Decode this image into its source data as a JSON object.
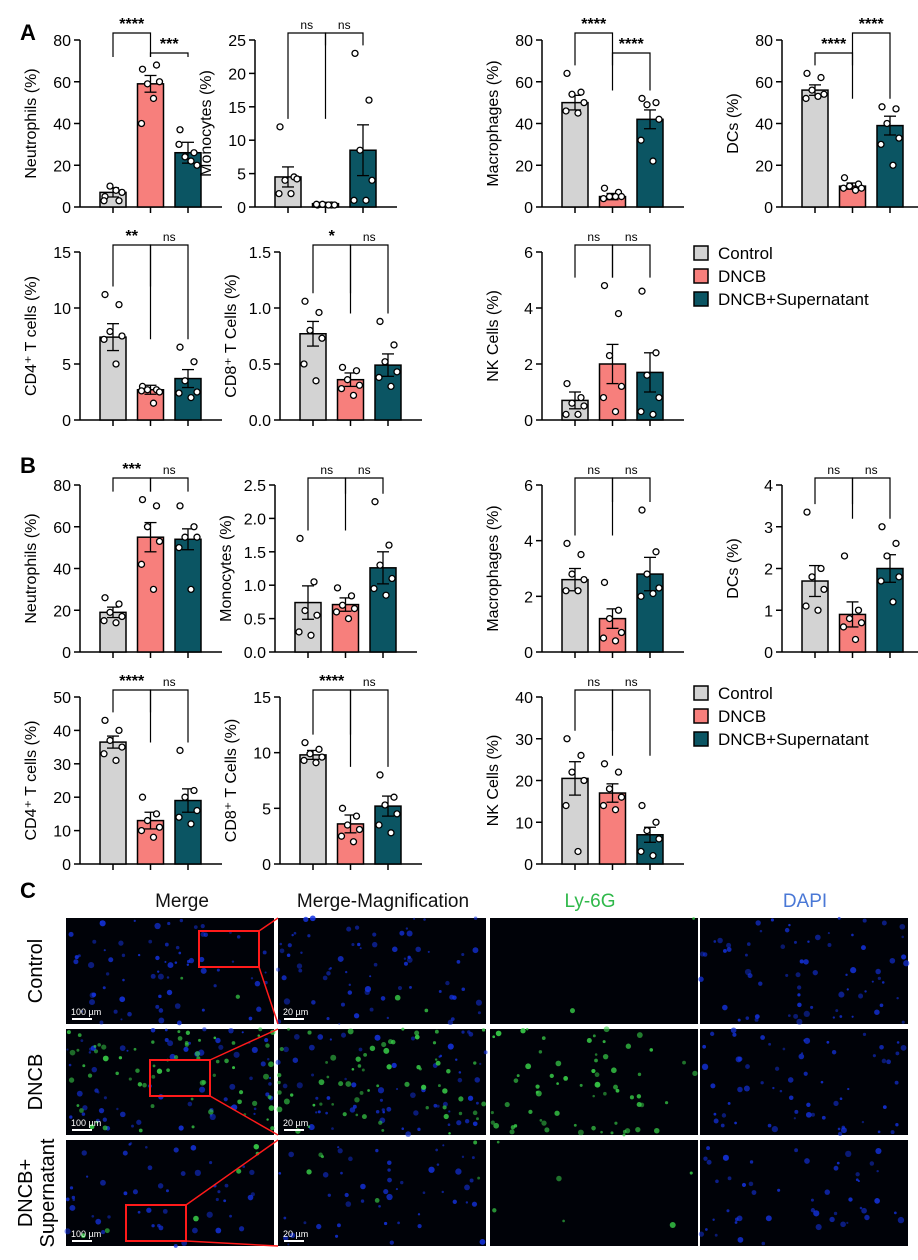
{
  "colors": {
    "control": "#d3d3d3",
    "dncb": "#f77f7c",
    "supernatant": "#0b5563",
    "edge": "#000000",
    "dapi": "#1434e6",
    "ly6g": "#39d24a",
    "roi": "#ff1a1a",
    "ly6g_title": "#2fb84a",
    "dapi_title": "#4a78d6"
  },
  "panel_labels": {
    "a": "A",
    "b": "B",
    "c": "C"
  },
  "legend": {
    "items": [
      "Control",
      "DNCB",
      "DNCB+Supernatant"
    ]
  },
  "chart_data": [
    {
      "type": "bar",
      "panel": "A",
      "ylabel": "Neutrophils (%)",
      "ylim": [
        0,
        80
      ],
      "yticks": [
        0,
        20,
        40,
        60,
        80
      ],
      "categories": [
        "Control",
        "DNCB",
        "DNCB+Supernatant"
      ],
      "values": [
        7,
        59,
        26
      ],
      "errors": [
        2.2,
        4,
        5
      ],
      "points": [
        [
          5,
          3,
          10,
          7,
          3,
          8
        ],
        [
          66,
          68,
          59,
          60,
          40,
          52
        ],
        [
          37,
          26,
          24,
          20,
          30,
          22
        ]
      ],
      "brackets": [
        {
          "from": 0,
          "to": 1,
          "label": "****",
          "level": 0
        },
        {
          "from": 1,
          "to": 2,
          "label": "***",
          "level": 1
        }
      ]
    },
    {
      "type": "bar",
      "panel": "A",
      "ylabel": "Monocytes (%)",
      "ylim": [
        0,
        25
      ],
      "yticks": [
        0,
        5,
        10,
        15,
        20,
        25
      ],
      "categories": [
        "Control",
        "DNCB",
        "DNCB+Supernatant"
      ],
      "values": [
        4.5,
        0.5,
        8.5
      ],
      "errors": [
        1.5,
        0.2,
        3.8
      ],
      "points": [
        [
          12,
          4.5,
          4,
          4.2,
          2,
          2
        ],
        [
          0.3,
          0.3,
          0.4,
          0.3,
          0.4,
          0.3
        ],
        [
          23,
          16,
          8.5,
          4,
          1,
          1
        ]
      ],
      "brackets": [
        {
          "from": 0,
          "to": 1,
          "label": "ns",
          "level": 0
        },
        {
          "from": 1,
          "to": 2,
          "label": "ns",
          "level": 0
        }
      ]
    },
    {
      "type": "bar",
      "panel": "A",
      "ylabel": "Macrophages (%)",
      "ylim": [
        0,
        80
      ],
      "yticks": [
        0,
        20,
        40,
        60,
        80
      ],
      "categories": [
        "Control",
        "DNCB",
        "DNCB+Supernatant"
      ],
      "values": [
        50,
        5,
        42
      ],
      "errors": [
        3.5,
        1.5,
        4.5
      ],
      "points": [
        [
          64,
          55,
          54,
          50,
          46,
          45
        ],
        [
          9,
          7,
          5,
          5,
          4,
          5
        ],
        [
          52,
          50,
          49,
          42,
          32,
          22
        ]
      ],
      "brackets": [
        {
          "from": 0,
          "to": 1,
          "label": "****",
          "level": 0
        },
        {
          "from": 1,
          "to": 2,
          "label": "****",
          "level": 1
        }
      ]
    },
    {
      "type": "bar",
      "panel": "A",
      "ylabel": "DCs (%)",
      "ylim": [
        0,
        80
      ],
      "yticks": [
        0,
        20,
        40,
        60,
        80
      ],
      "categories": [
        "Control",
        "DNCB",
        "DNCB+Supernatant"
      ],
      "values": [
        56,
        10,
        39
      ],
      "errors": [
        2.5,
        1.5,
        4.5
      ],
      "points": [
        [
          64,
          62,
          56,
          54,
          52,
          53
        ],
        [
          14,
          11,
          10,
          9,
          9,
          8
        ],
        [
          48,
          47,
          40,
          33,
          30,
          20
        ]
      ],
      "brackets": [
        {
          "from": 0,
          "to": 1,
          "label": "****",
          "level": 1
        },
        {
          "from": 1,
          "to": 2,
          "label": "****",
          "level": 0
        }
      ]
    },
    {
      "type": "bar",
      "panel": "A",
      "ylabel": "CD4⁺ T cells (%)",
      "ylim": [
        0,
        15
      ],
      "yticks": [
        0,
        5,
        10,
        15
      ],
      "categories": [
        "Control",
        "DNCB",
        "DNCB+Supernatant"
      ],
      "values": [
        7.4,
        2.7,
        3.7
      ],
      "errors": [
        1.2,
        0.4,
        0.8
      ],
      "points": [
        [
          11.2,
          10.3,
          7.9,
          7.5,
          7.2,
          5
        ],
        [
          3,
          2.7,
          2.7,
          2.5,
          2.6,
          1.5
        ],
        [
          6.5,
          5.2,
          3.5,
          2.5,
          2.4,
          2
        ]
      ],
      "brackets": [
        {
          "from": 0,
          "to": 1,
          "label": "**",
          "level": 0
        },
        {
          "from": 1,
          "to": 2,
          "label": "ns",
          "level": 0
        }
      ]
    },
    {
      "type": "bar",
      "panel": "A",
      "ylabel": "CD8⁺ T Cells (%)",
      "ylim": [
        0,
        1.5
      ],
      "yticks": [
        "0.0",
        "0.5",
        "1.0",
        "1.5"
      ],
      "categories": [
        "Control",
        "DNCB",
        "DNCB+Supernatant"
      ],
      "values": [
        0.77,
        0.36,
        0.49
      ],
      "errors": [
        0.11,
        0.06,
        0.1
      ],
      "points": [
        [
          1.06,
          0.96,
          0.8,
          0.73,
          0.5,
          0.35
        ],
        [
          0.47,
          0.44,
          0.36,
          0.31,
          0.28,
          0.22
        ],
        [
          0.88,
          0.67,
          0.52,
          0.43,
          0.38,
          0.3
        ]
      ],
      "brackets": [
        {
          "from": 0,
          "to": 1,
          "label": "*",
          "level": 0
        },
        {
          "from": 1,
          "to": 2,
          "label": "ns",
          "level": 0
        }
      ]
    },
    {
      "type": "bar",
      "panel": "A",
      "ylabel": "NK Cells (%)",
      "ylim": [
        0,
        6
      ],
      "yticks": [
        0,
        2,
        4,
        6
      ],
      "categories": [
        "Control",
        "DNCB",
        "DNCB+Supernatant"
      ],
      "values": [
        0.7,
        2,
        1.7
      ],
      "errors": [
        0.3,
        0.7,
        0.7
      ],
      "points": [
        [
          1.3,
          0.8,
          0.6,
          0.5,
          0.2,
          0.2
        ],
        [
          4.8,
          3.8,
          2.3,
          1.2,
          0.8,
          0.3
        ],
        [
          4.6,
          2.4,
          1.6,
          0.8,
          0.3,
          0.2
        ]
      ],
      "brackets": [
        {
          "from": 0,
          "to": 1,
          "label": "ns",
          "level": 0
        },
        {
          "from": 1,
          "to": 2,
          "label": "ns",
          "level": 0
        }
      ]
    },
    {
      "type": "bar",
      "panel": "B",
      "ylabel": "Neutrophils (%)",
      "ylim": [
        0,
        80
      ],
      "yticks": [
        0,
        20,
        40,
        60,
        80
      ],
      "categories": [
        "Control",
        "DNCB",
        "DNCB+Supernatant"
      ],
      "values": [
        19,
        55,
        54
      ],
      "errors": [
        2.5,
        7,
        5
      ],
      "points": [
        [
          26,
          23,
          19,
          17,
          15,
          14
        ],
        [
          73,
          70,
          60,
          53,
          42,
          30
        ],
        [
          70,
          60,
          55,
          55,
          50,
          30
        ]
      ],
      "brackets": [
        {
          "from": 0,
          "to": 1,
          "label": "***",
          "level": 0
        },
        {
          "from": 1,
          "to": 2,
          "label": "ns",
          "level": 0
        }
      ]
    },
    {
      "type": "bar",
      "panel": "B",
      "ylabel": "Monocytes (%)",
      "ylim": [
        0,
        2.5
      ],
      "yticks": [
        "0.0",
        "0.5",
        "1.0",
        "1.5",
        "2.0",
        "2.5"
      ],
      "categories": [
        "Control",
        "DNCB",
        "DNCB+Supernatant"
      ],
      "values": [
        0.74,
        0.71,
        1.26
      ],
      "errors": [
        0.25,
        0.1,
        0.24
      ],
      "points": [
        [
          1.7,
          1.05,
          0.62,
          0.55,
          0.3,
          0.25
        ],
        [
          0.96,
          0.84,
          0.7,
          0.65,
          0.6,
          0.5
        ],
        [
          2.25,
          1.6,
          1.3,
          1.1,
          0.95,
          0.85
        ]
      ],
      "brackets": [
        {
          "from": 0,
          "to": 1,
          "label": "ns",
          "level": 0
        },
        {
          "from": 1,
          "to": 2,
          "label": "ns",
          "level": 0
        }
      ]
    },
    {
      "type": "bar",
      "panel": "B",
      "ylabel": "Macrophages (%)",
      "ylim": [
        0,
        6
      ],
      "yticks": [
        0,
        2,
        4,
        6
      ],
      "categories": [
        "Control",
        "DNCB",
        "DNCB+Supernatant"
      ],
      "values": [
        2.6,
        1.2,
        2.8
      ],
      "errors": [
        0.4,
        0.35,
        0.6
      ],
      "points": [
        [
          3.9,
          3.5,
          2.8,
          2.6,
          2.2,
          2.2
        ],
        [
          2.5,
          1.5,
          1.2,
          0.7,
          0.5,
          0.4
        ],
        [
          5.1,
          3.6,
          2.8,
          2.3,
          2,
          2.1
        ]
      ],
      "brackets": [
        {
          "from": 0,
          "to": 1,
          "label": "ns",
          "level": 0
        },
        {
          "from": 1,
          "to": 2,
          "label": "ns",
          "level": 0
        }
      ]
    },
    {
      "type": "bar",
      "panel": "B",
      "ylabel": "DCs (%)",
      "ylim": [
        0,
        4
      ],
      "yticks": [
        0,
        1,
        2,
        3,
        4
      ],
      "categories": [
        "Control",
        "DNCB",
        "DNCB+Supernatant"
      ],
      "values": [
        1.7,
        0.9,
        2
      ],
      "errors": [
        0.37,
        0.3,
        0.33
      ],
      "points": [
        [
          3.35,
          2.0,
          1.8,
          1.5,
          1.1,
          1.0
        ],
        [
          2.3,
          1.0,
          0.8,
          0.7,
          0.6,
          0.3
        ],
        [
          3.0,
          2.6,
          2.3,
          1.8,
          1.7,
          1.2
        ]
      ],
      "brackets": [
        {
          "from": 0,
          "to": 1,
          "label": "ns",
          "level": 0
        },
        {
          "from": 1,
          "to": 2,
          "label": "ns",
          "level": 0
        }
      ]
    },
    {
      "type": "bar",
      "panel": "B",
      "ylabel": "CD4⁺ T cells (%)",
      "ylim": [
        0,
        50
      ],
      "yticks": [
        0,
        10,
        20,
        30,
        40,
        50
      ],
      "categories": [
        "Control",
        "DNCB",
        "DNCB+Supernatant"
      ],
      "values": [
        36.5,
        13,
        19
      ],
      "errors": [
        1.8,
        2.5,
        3.5
      ],
      "points": [
        [
          43,
          40,
          37,
          35,
          33,
          31
        ],
        [
          20,
          15,
          13,
          11,
          10,
          8
        ],
        [
          34,
          22,
          20,
          16,
          14,
          12
        ]
      ],
      "brackets": [
        {
          "from": 0,
          "to": 1,
          "label": "****",
          "level": 0
        },
        {
          "from": 1,
          "to": 2,
          "label": "ns",
          "level": 0
        }
      ]
    },
    {
      "type": "bar",
      "panel": "B",
      "ylabel": "CD8⁺ T Cells (%)",
      "ylim": [
        0,
        15
      ],
      "yticks": [
        0,
        5,
        10,
        15
      ],
      "categories": [
        "Control",
        "DNCB",
        "DNCB+Supernatant"
      ],
      "values": [
        9.8,
        3.6,
        5.2
      ],
      "errors": [
        0.4,
        0.8,
        0.9
      ],
      "points": [
        [
          10.9,
          10.3,
          9.9,
          9.6,
          9.3,
          9.1
        ],
        [
          5,
          4.3,
          3.5,
          3.1,
          2.5,
          2
        ],
        [
          8,
          6,
          5.3,
          4.5,
          3.5,
          2.8
        ]
      ],
      "brackets": [
        {
          "from": 0,
          "to": 1,
          "label": "****",
          "level": 0
        },
        {
          "from": 1,
          "to": 2,
          "label": "ns",
          "level": 0
        }
      ]
    },
    {
      "type": "bar",
      "panel": "B",
      "ylabel": "NK Cells (%)",
      "ylim": [
        0,
        40
      ],
      "yticks": [
        0,
        10,
        20,
        30,
        40
      ],
      "categories": [
        "Control",
        "DNCB",
        "DNCB+Supernatant"
      ],
      "values": [
        20.5,
        17,
        7
      ],
      "errors": [
        4,
        2.2,
        1.8
      ],
      "points": [
        [
          30,
          26,
          22,
          20,
          14,
          3
        ],
        [
          24,
          22,
          18,
          16,
          14,
          13
        ],
        [
          14,
          10,
          8,
          6,
          3,
          2
        ]
      ],
      "brackets": [
        {
          "from": 0,
          "to": 1,
          "label": "ns",
          "level": 0
        },
        {
          "from": 1,
          "to": 2,
          "label": "ns",
          "level": 0
        }
      ]
    }
  ],
  "micro": {
    "columns": [
      "Merge",
      "Merge-Magnification",
      "Ly-6G",
      "DAPI"
    ],
    "rows": [
      "Control",
      "DNCB",
      "DNCB+\nSupernatant"
    ],
    "scale_bar_large": "100 µm",
    "scale_bar_small": "20 µm",
    "ly6g_density": [
      0.02,
      0.55,
      0.05
    ],
    "dapi_density": [
      0.5,
      0.45,
      0.35
    ]
  }
}
